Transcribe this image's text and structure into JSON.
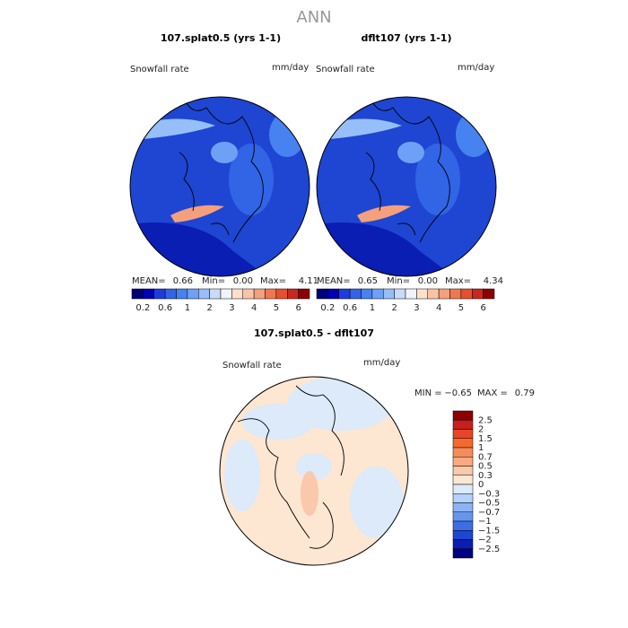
{
  "title": "ANN",
  "panels": [
    {
      "title": "107.splat0.5 (yrs 1-1)",
      "variable": "Snowfall rate",
      "units": "mm/day",
      "stats": [
        {
          "label": "MEAN=",
          "value": "0.66"
        },
        {
          "label": "Min=",
          "value": "0.00"
        },
        {
          "label": "Max=",
          "value": "4.11"
        }
      ]
    },
    {
      "title": "dflt107 (yrs 1-1)",
      "variable": "Snowfall rate",
      "units": "mm/day",
      "stats": [
        {
          "label": "MEAN=",
          "value": "0.65"
        },
        {
          "label": "Min=",
          "value": "0.00"
        },
        {
          "label": "Max=",
          "value": "4.34"
        }
      ]
    },
    {
      "title": "107.splat0.5 - dflt107",
      "variable": "Snowfall rate",
      "units": "mm/day",
      "stats": [
        {
          "label": "MIN =",
          "value": "−0.65"
        },
        {
          "label": "MAX =",
          "value": "0.79"
        }
      ]
    }
  ],
  "colorbars": [
    {
      "labels": [
        "0.2",
        "0.6",
        "1",
        "2",
        "3",
        "4",
        "5",
        "6"
      ],
      "colors": [
        "#000078",
        "#0000b4",
        "#1e3cdc",
        "#3264e6",
        "#4682f0",
        "#6ea0f5",
        "#96bef8",
        "#c8dcfa",
        "#f0f4fa",
        "#fde0cc",
        "#fac3a5",
        "#f5a07d",
        "#f07850",
        "#e6502d",
        "#c8281e",
        "#8c0000"
      ]
    },
    {
      "labels": [
        "2.5",
        "2",
        "1.5",
        "1",
        "0.7",
        "0.5",
        "0.3",
        "0",
        "−0.3",
        "−0.5",
        "−0.7",
        "−1",
        "−1.5",
        "−2",
        "−2.5"
      ],
      "colors": [
        "#8c0000",
        "#c81e1e",
        "#e64628",
        "#f5692d",
        "#f58c5a",
        "#faaa82",
        "#fac8aa",
        "#fde6d2",
        "#dceafa",
        "#b4d2fa",
        "#8cb4f5",
        "#6496f0",
        "#3c6ee6",
        "#1e46d2",
        "#0a1eb4",
        "#000082"
      ]
    }
  ]
}
